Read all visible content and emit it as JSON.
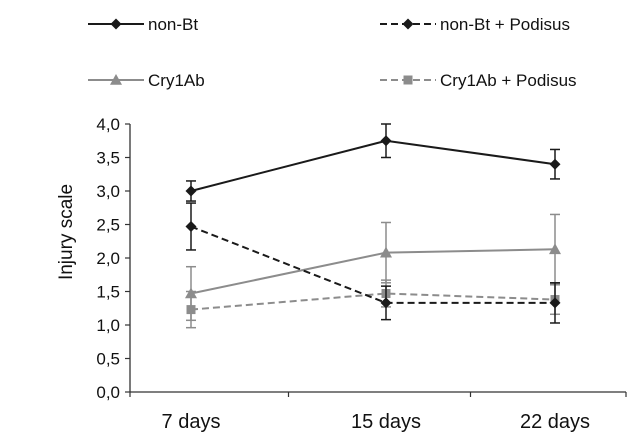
{
  "chart_data": {
    "type": "line",
    "title": "",
    "xlabel": "",
    "ylabel": "Injury scale",
    "categories": [
      "7 days",
      "15 days",
      "22 days"
    ],
    "ylim": [
      0,
      4
    ],
    "yticks": [
      "0,0",
      "0,5",
      "1,0",
      "1,5",
      "2,0",
      "2,5",
      "3,0",
      "3,5",
      "4,0"
    ],
    "grid": false,
    "legend_position": "top",
    "series": [
      {
        "name": "non-Bt",
        "values": [
          3.0,
          3.75,
          3.4
        ],
        "errors": [
          0.15,
          0.25,
          0.22
        ],
        "color": "#1a1a1a",
        "dash": "solid",
        "marker": "diamond"
      },
      {
        "name": "non-Bt + Podisus",
        "values": [
          2.47,
          1.33,
          1.33
        ],
        "errors": [
          0.35,
          0.25,
          0.3
        ],
        "color": "#1a1a1a",
        "dash": "dashed",
        "marker": "diamond"
      },
      {
        "name": "Cry1Ab",
        "values": [
          1.47,
          2.08,
          2.13
        ],
        "errors": [
          0.4,
          0.45,
          0.52
        ],
        "color": "#8c8c8c",
        "dash": "solid",
        "marker": "triangle"
      },
      {
        "name": "Cry1Ab + Podisus",
        "values": [
          1.23,
          1.47,
          1.38
        ],
        "errors": [
          0.27,
          0.2,
          0.22
        ],
        "color": "#8c8c8c",
        "dash": "dashed",
        "marker": "square"
      }
    ]
  }
}
